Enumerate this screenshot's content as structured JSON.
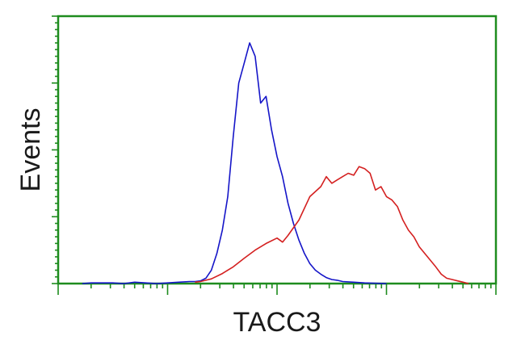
{
  "chart_data": {
    "type": "line",
    "title": "",
    "xlabel": "TACC3",
    "ylabel": "Events",
    "xlim": [
      0,
      4
    ],
    "ylim": [
      0,
      4
    ],
    "x_scale": "log",
    "grid": false,
    "legend": "none",
    "frame_color": "#1e8c1e",
    "series": [
      {
        "color": "#1515c8",
        "x": [
          0.22,
          0.3,
          0.5,
          0.6,
          0.7,
          0.8,
          0.9,
          1.0,
          1.1,
          1.2,
          1.25,
          1.3,
          1.35,
          1.4,
          1.45,
          1.5,
          1.55,
          1.6,
          1.65,
          1.7,
          1.75,
          1.8,
          1.85,
          1.9,
          1.95,
          2.0,
          2.05,
          2.1,
          2.15,
          2.2,
          2.25,
          2.3,
          2.35,
          2.4,
          2.45,
          2.5,
          2.55,
          2.6,
          2.7,
          2.8,
          3.0
        ],
        "y": [
          0,
          0.01,
          0.01,
          0,
          0.02,
          0.01,
          0,
          0.01,
          0.02,
          0.03,
          0.03,
          0.04,
          0.08,
          0.2,
          0.45,
          0.8,
          1.3,
          2.2,
          3.0,
          3.3,
          3.6,
          3.4,
          2.7,
          2.8,
          2.3,
          1.9,
          1.6,
          1.2,
          0.9,
          0.65,
          0.45,
          0.3,
          0.2,
          0.14,
          0.09,
          0.06,
          0.05,
          0.03,
          0.02,
          0.01,
          0
        ]
      },
      {
        "color": "#d42020",
        "x": [
          1.25,
          1.3,
          1.4,
          1.5,
          1.55,
          1.6,
          1.7,
          1.8,
          1.9,
          2.0,
          2.05,
          2.1,
          2.2,
          2.3,
          2.4,
          2.45,
          2.5,
          2.55,
          2.6,
          2.65,
          2.7,
          2.75,
          2.8,
          2.85,
          2.9,
          2.95,
          3.0,
          3.05,
          3.1,
          3.15,
          3.2,
          3.25,
          3.3,
          3.35,
          3.4,
          3.45,
          3.5,
          3.55,
          3.6,
          3.65,
          3.7,
          3.75
        ],
        "y": [
          0.02,
          0.03,
          0.07,
          0.15,
          0.2,
          0.25,
          0.38,
          0.5,
          0.6,
          0.68,
          0.62,
          0.72,
          0.95,
          1.3,
          1.45,
          1.6,
          1.5,
          1.55,
          1.6,
          1.65,
          1.62,
          1.75,
          1.72,
          1.65,
          1.4,
          1.45,
          1.3,
          1.25,
          1.15,
          0.95,
          0.8,
          0.7,
          0.55,
          0.45,
          0.35,
          0.25,
          0.14,
          0.08,
          0.06,
          0.04,
          0.02,
          0
        ]
      }
    ]
  }
}
